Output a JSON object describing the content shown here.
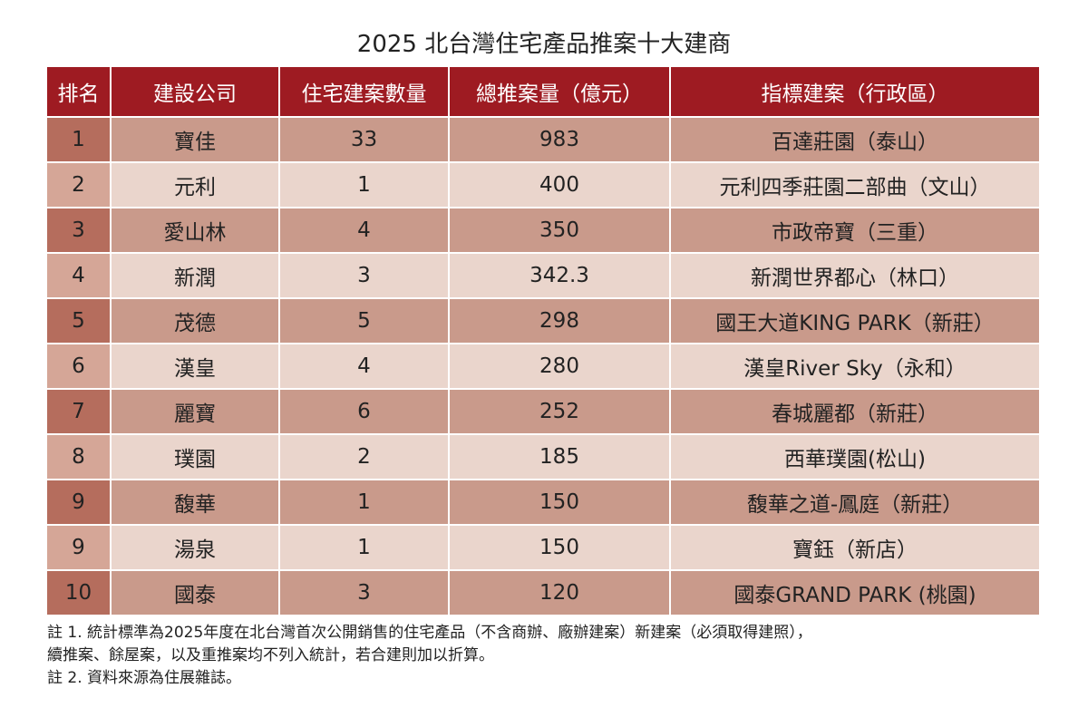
{
  "title": "2025 北台灣住宅產品推案十大建商",
  "table": {
    "header": [
      "排名",
      "建設公司",
      "住宅建案數量",
      "總推案量（億元）",
      "指標建案（行政區）"
    ],
    "rows": [
      [
        "1",
        "寶佳",
        "33",
        "983",
        "百達莊園（泰山）"
      ],
      [
        "2",
        "元利",
        "1",
        "400",
        "元利四季莊園二部曲（文山）"
      ],
      [
        "3",
        "愛山林",
        "4",
        "350",
        "市政帝寶（三重）"
      ],
      [
        "4",
        "新潤",
        "3",
        "342.3",
        "新潤世界都心（林口）"
      ],
      [
        "5",
        "茂德",
        "5",
        "298",
        "國王大道KING PARK（新莊）"
      ],
      [
        "6",
        "漢皇",
        "4",
        "280",
        "漢皇River Sky（永和）"
      ],
      [
        "7",
        "麗寶",
        "6",
        "252",
        "春城麗都（新莊）"
      ],
      [
        "8",
        "璞園",
        "2",
        "185",
        "西華璞園(松山)"
      ],
      [
        "9",
        "馥華",
        "1",
        "150",
        "馥華之道-鳳庭（新莊）"
      ],
      [
        "9",
        "湯泉",
        "1",
        "150",
        "寶鈺（新店）"
      ],
      [
        "10",
        "國泰",
        "3",
        "120",
        "國泰GRAND PARK (桃園)"
      ]
    ]
  },
  "notes": [
    "註 1. 統計標準為2025年度在北台灣首次公開銷售的住宅產品（不含商辦、廠辦建案）新建案（必須取得建照），",
    "續推案、餘屋案，以及重推案均不列入統計，若合建則加以折算。",
    "註 2. 資料來源為住展雜誌。"
  ]
}
